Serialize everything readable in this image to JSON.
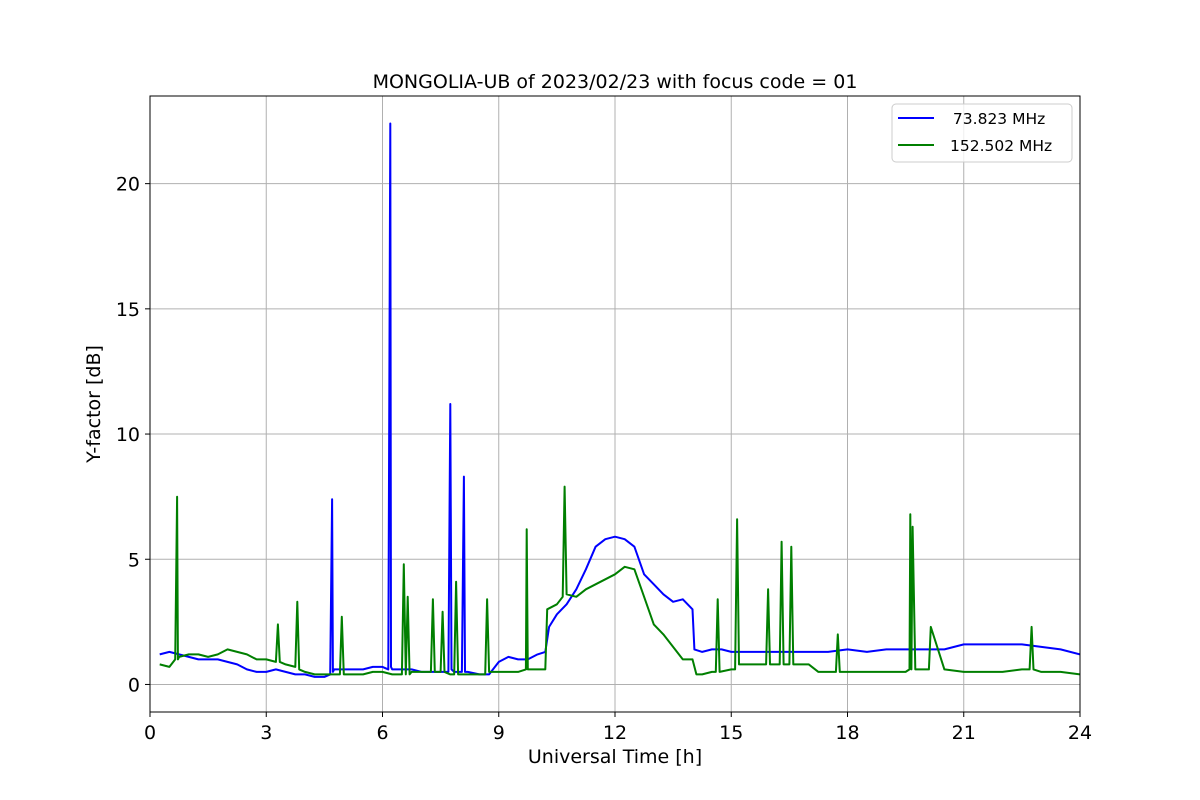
{
  "chart_data": {
    "type": "line",
    "title": "MONGOLIA-UB of 2023/02/23 with focus code = 01",
    "xlabel": "Universal Time [h]",
    "ylabel": "Y-factor [dB]",
    "xlim": [
      0,
      24
    ],
    "ylim": [
      -1.1,
      23.5
    ],
    "xticks": [
      0,
      3,
      6,
      9,
      12,
      15,
      18,
      21,
      24
    ],
    "yticks": [
      0,
      5,
      10,
      15,
      20
    ],
    "grid": true,
    "legend_position": "top-right",
    "series": [
      {
        "name": " 73.823 MHz",
        "color": "#0000ff",
        "x": [
          0.25,
          0.5,
          0.75,
          1.0,
          1.25,
          1.5,
          1.75,
          2.0,
          2.25,
          2.5,
          2.75,
          3.0,
          3.25,
          3.5,
          3.75,
          4.0,
          4.25,
          4.5,
          4.65,
          4.7,
          4.72,
          4.75,
          5.0,
          5.25,
          5.5,
          5.75,
          6.0,
          6.15,
          6.2,
          6.22,
          6.25,
          6.5,
          6.75,
          7.0,
          7.25,
          7.5,
          7.7,
          7.75,
          7.78,
          7.85,
          8.0,
          8.05,
          8.1,
          8.13,
          8.2,
          8.5,
          8.75,
          9.0,
          9.25,
          9.5,
          9.75,
          10.0,
          10.2,
          10.3,
          10.5,
          10.75,
          11.0,
          11.25,
          11.5,
          11.75,
          12.0,
          12.25,
          12.5,
          12.75,
          13.0,
          13.25,
          13.5,
          13.75,
          14.0,
          14.05,
          14.25,
          14.5,
          14.75,
          15.0,
          15.5,
          16.0,
          16.5,
          17.0,
          17.5,
          18.0,
          18.5,
          19.0,
          19.5,
          20.0,
          20.5,
          21.0,
          21.5,
          22.0,
          22.5,
          23.0,
          23.5,
          24.0
        ],
        "values": [
          1.2,
          1.3,
          1.2,
          1.1,
          1.0,
          1.0,
          1.0,
          0.9,
          0.8,
          0.6,
          0.5,
          0.5,
          0.6,
          0.5,
          0.4,
          0.4,
          0.3,
          0.3,
          0.4,
          7.4,
          0.5,
          0.6,
          0.6,
          0.6,
          0.6,
          0.7,
          0.7,
          0.6,
          22.4,
          0.7,
          0.6,
          0.6,
          0.6,
          0.5,
          0.5,
          0.5,
          0.5,
          11.2,
          0.6,
          0.5,
          0.5,
          0.5,
          8.3,
          0.5,
          0.5,
          0.4,
          0.4,
          0.9,
          1.1,
          1.0,
          1.0,
          1.2,
          1.3,
          2.3,
          2.8,
          3.2,
          3.8,
          4.6,
          5.5,
          5.8,
          5.9,
          5.8,
          5.5,
          4.4,
          4.0,
          3.6,
          3.3,
          3.4,
          3.0,
          1.4,
          1.3,
          1.4,
          1.4,
          1.3,
          1.3,
          1.3,
          1.3,
          1.3,
          1.3,
          1.4,
          1.3,
          1.4,
          1.4,
          1.4,
          1.4,
          1.6,
          1.6,
          1.6,
          1.6,
          1.5,
          1.4,
          1.2
        ]
      },
      {
        "name": "152.502 MHz",
        "color": "#007f00",
        "x": [
          0.25,
          0.5,
          0.65,
          0.7,
          0.72,
          0.75,
          1.0,
          1.25,
          1.5,
          1.75,
          2.0,
          2.25,
          2.5,
          2.75,
          3.0,
          3.25,
          3.3,
          3.35,
          3.5,
          3.75,
          3.8,
          3.85,
          4.0,
          4.25,
          4.5,
          4.75,
          4.9,
          4.95,
          5.0,
          5.25,
          5.5,
          5.75,
          6.0,
          6.25,
          6.5,
          6.55,
          6.6,
          6.65,
          6.7,
          6.75,
          7.0,
          7.25,
          7.3,
          7.35,
          7.5,
          7.55,
          7.6,
          7.75,
          7.85,
          7.9,
          7.95,
          8.0,
          8.25,
          8.5,
          8.65,
          8.7,
          8.75,
          9.0,
          9.25,
          9.5,
          9.7,
          9.72,
          9.75,
          10.0,
          10.2,
          10.25,
          10.5,
          10.65,
          10.7,
          10.75,
          11.0,
          11.25,
          11.5,
          11.75,
          12.0,
          12.25,
          12.5,
          12.75,
          13.0,
          13.25,
          13.5,
          13.75,
          14.0,
          14.1,
          14.25,
          14.5,
          14.6,
          14.65,
          14.7,
          15.0,
          15.1,
          15.15,
          15.2,
          15.5,
          15.75,
          15.9,
          15.95,
          16.0,
          16.25,
          16.3,
          16.35,
          16.5,
          16.55,
          16.6,
          16.75,
          17.0,
          17.25,
          17.5,
          17.7,
          17.75,
          17.8,
          18.0,
          18.5,
          19.0,
          19.5,
          19.6,
          19.62,
          19.65,
          19.68,
          19.75,
          20.0,
          20.1,
          20.15,
          20.5,
          21.0,
          21.5,
          22.0,
          22.5,
          22.7,
          22.75,
          22.8,
          23.0,
          23.5,
          24.0
        ],
        "values": [
          0.8,
          0.7,
          1.0,
          7.5,
          1.0,
          1.1,
          1.2,
          1.2,
          1.1,
          1.2,
          1.4,
          1.3,
          1.2,
          1.0,
          1.0,
          0.9,
          2.4,
          0.9,
          0.8,
          0.7,
          3.3,
          0.6,
          0.5,
          0.4,
          0.4,
          0.4,
          0.4,
          2.7,
          0.4,
          0.4,
          0.4,
          0.5,
          0.5,
          0.4,
          0.4,
          4.8,
          0.4,
          3.5,
          0.4,
          0.5,
          0.5,
          0.5,
          3.4,
          0.5,
          0.5,
          2.9,
          0.5,
          0.4,
          0.4,
          4.1,
          0.4,
          0.4,
          0.4,
          0.4,
          0.4,
          3.4,
          0.5,
          0.5,
          0.5,
          0.5,
          0.6,
          6.2,
          0.6,
          0.6,
          0.6,
          3.0,
          3.2,
          3.5,
          7.9,
          3.6,
          3.5,
          3.8,
          4.0,
          4.2,
          4.4,
          4.7,
          4.6,
          3.5,
          2.4,
          2.0,
          1.5,
          1.0,
          1.0,
          0.4,
          0.4,
          0.5,
          0.5,
          3.4,
          0.5,
          0.6,
          0.6,
          6.6,
          0.8,
          0.8,
          0.8,
          0.8,
          3.8,
          0.8,
          0.8,
          5.7,
          0.8,
          0.8,
          5.5,
          0.8,
          0.8,
          0.8,
          0.5,
          0.5,
          0.5,
          2.0,
          0.5,
          0.5,
          0.5,
          0.5,
          0.5,
          0.6,
          6.8,
          0.6,
          6.3,
          0.6,
          0.6,
          0.6,
          2.3,
          0.6,
          0.5,
          0.5,
          0.5,
          0.6,
          0.6,
          2.3,
          0.6,
          0.5,
          0.5,
          0.4
        ]
      }
    ]
  }
}
